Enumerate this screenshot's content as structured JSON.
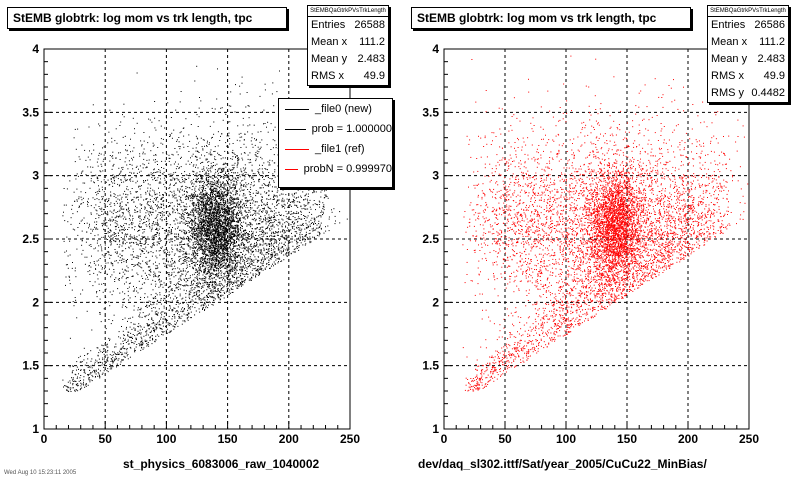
{
  "chart_data": [
    {
      "type": "scatter",
      "title": "StEMB globtrk: log mom vs trk length, tpc",
      "xlabel": "st_physics_6083006_raw_1040002",
      "ylabel": "",
      "xlim": [
        0,
        250
      ],
      "ylim": [
        1,
        4
      ],
      "x_ticks": [
        "0",
        "50",
        "100",
        "150",
        "200",
        "250"
      ],
      "y_ticks": [
        "1",
        "1.5",
        "2",
        "2.5",
        "3",
        "3.5",
        "4"
      ],
      "grid": true,
      "color": "#000000",
      "clusters": [
        {
          "x": 140,
          "y": 2.6,
          "sx": 11,
          "sy": 0.22,
          "w": 0.3
        },
        {
          "x": 125,
          "y": 2.55,
          "sx": 45,
          "sy": 0.42,
          "w": 0.35
        },
        {
          "x": 180,
          "y": 2.7,
          "sx": 35,
          "sy": 0.35,
          "w": 0.12
        },
        {
          "x": 60,
          "y": 2.7,
          "sx": 25,
          "sy": 0.3,
          "w": 0.08
        }
      ],
      "band": {
        "x0": 18,
        "y0": 1.3,
        "x1": 230,
        "y1": 2.65,
        "width": 0.22,
        "w": 0.25
      },
      "stats": {
        "header": "StEMBQaGtrkPVsTrkLength",
        "rows": [
          {
            "label": "Entries",
            "value": "26588"
          },
          {
            "label": "Mean x",
            "value": "111.2"
          },
          {
            "label": "Mean y",
            "value": "2.483"
          },
          {
            "label": "RMS x",
            "value": "49.9"
          }
        ]
      },
      "legend": [
        {
          "label": "_file0 (new)",
          "color": "#000000"
        },
        {
          "label": "prob = 1.000000",
          "color": "#000000"
        },
        {
          "label": "_file1 (ref)",
          "color": "#ff0000"
        },
        {
          "label": "probN = 0.999970",
          "color": "#ff0000"
        }
      ]
    },
    {
      "type": "scatter",
      "title": "StEMB globtrk: log mom vs trk length, tpc",
      "xlabel": "dev/daq_sl302.ittf/Sat/year_2005/CuCu22_MinBias/",
      "ylabel": "",
      "xlim": [
        0,
        250
      ],
      "ylim": [
        1,
        4
      ],
      "x_ticks": [
        "0",
        "50",
        "100",
        "150",
        "200",
        "250"
      ],
      "y_ticks": [
        "1",
        "1.5",
        "2",
        "2.5",
        "3",
        "3.5",
        "4"
      ],
      "grid": true,
      "color": "#ff0000",
      "clusters": [
        {
          "x": 140,
          "y": 2.6,
          "sx": 11,
          "sy": 0.22,
          "w": 0.3
        },
        {
          "x": 125,
          "y": 2.55,
          "sx": 45,
          "sy": 0.42,
          "w": 0.35
        },
        {
          "x": 180,
          "y": 2.7,
          "sx": 35,
          "sy": 0.35,
          "w": 0.12
        },
        {
          "x": 60,
          "y": 2.7,
          "sx": 25,
          "sy": 0.3,
          "w": 0.08
        }
      ],
      "band": {
        "x0": 18,
        "y0": 1.3,
        "x1": 230,
        "y1": 2.65,
        "width": 0.22,
        "w": 0.25
      },
      "stats": {
        "header": "StEMBQaGtrkPVsTrkLength",
        "rows": [
          {
            "label": "Entries",
            "value": "26586"
          },
          {
            "label": "Mean x",
            "value": "111.2"
          },
          {
            "label": "Mean y",
            "value": "2.483"
          },
          {
            "label": "RMS x",
            "value": "49.9"
          },
          {
            "label": "RMS y",
            "value": "0.4482"
          }
        ]
      }
    }
  ],
  "footer_text": "Wed Aug 10 15:23:11 2005"
}
